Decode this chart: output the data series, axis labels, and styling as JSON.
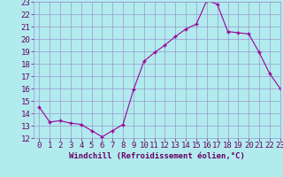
{
  "x": [
    0,
    1,
    2,
    3,
    4,
    5,
    6,
    7,
    8,
    9,
    10,
    11,
    12,
    13,
    14,
    15,
    16,
    17,
    18,
    19,
    20,
    21,
    22,
    23
  ],
  "y": [
    14.5,
    13.3,
    13.4,
    13.2,
    13.1,
    12.6,
    12.1,
    12.6,
    13.1,
    15.9,
    18.2,
    18.9,
    19.5,
    20.2,
    20.8,
    21.2,
    23.1,
    22.8,
    20.6,
    20.5,
    20.4,
    18.9,
    17.2,
    16.0
  ],
  "line_color": "#990099",
  "marker": "+",
  "bg_color": "#b2ebee",
  "grid_color": "#9999cc",
  "xlabel": "Windchill (Refroidissement éolien,°C)",
  "ylim": [
    12,
    23
  ],
  "xlim": [
    -0.5,
    23
  ],
  "yticks": [
    12,
    13,
    14,
    15,
    16,
    17,
    18,
    19,
    20,
    21,
    22,
    23
  ],
  "xticks": [
    0,
    1,
    2,
    3,
    4,
    5,
    6,
    7,
    8,
    9,
    10,
    11,
    12,
    13,
    14,
    15,
    16,
    17,
    18,
    19,
    20,
    21,
    22,
    23
  ],
  "xlabel_fontsize": 6.5,
  "tick_fontsize": 6.5,
  "label_color": "#660066",
  "spine_color": "#9999cc"
}
